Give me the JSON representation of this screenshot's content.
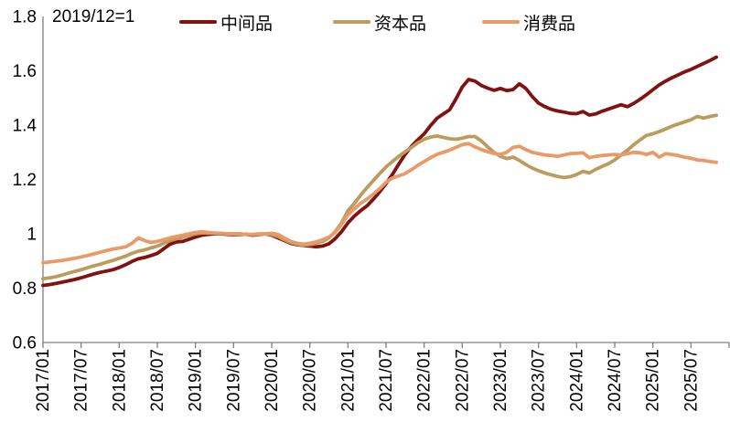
{
  "chart_data": {
    "type": "line",
    "title": "",
    "annotation": "2019/12=1",
    "grid": false,
    "legend_position": "top",
    "ylim": [
      0.6,
      1.8
    ],
    "y_tick_labels": [
      "0.6",
      "0.8",
      "1",
      "1.2",
      "1.4",
      "1.6",
      "1.8"
    ],
    "y_tick_values": [
      0.6,
      0.8,
      1.0,
      1.2,
      1.4,
      1.6,
      1.8
    ],
    "x_tick_labels": [
      "2017/01",
      "2017/07",
      "2018/01",
      "2018/07",
      "2019/01",
      "2019/07",
      "2020/01",
      "2020/07",
      "2021/01",
      "2021/07",
      "2022/01",
      "2022/07",
      "2023/01",
      "2023/07",
      "2024/01",
      "2024/07",
      "2025/01",
      "2025/07"
    ],
    "months_per_tick": 6,
    "x": [
      "2017/01",
      "2017/02",
      "2017/03",
      "2017/04",
      "2017/05",
      "2017/06",
      "2017/07",
      "2017/08",
      "2017/09",
      "2017/10",
      "2017/11",
      "2017/12",
      "2018/01",
      "2018/02",
      "2018/03",
      "2018/04",
      "2018/05",
      "2018/06",
      "2018/07",
      "2018/08",
      "2018/09",
      "2018/10",
      "2018/11",
      "2018/12",
      "2019/01",
      "2019/02",
      "2019/03",
      "2019/04",
      "2019/05",
      "2019/06",
      "2019/07",
      "2019/08",
      "2019/09",
      "2019/10",
      "2019/11",
      "2019/12",
      "2020/01",
      "2020/02",
      "2020/03",
      "2020/04",
      "2020/05",
      "2020/06",
      "2020/07",
      "2020/08",
      "2020/09",
      "2020/10",
      "2020/11",
      "2020/12",
      "2021/01",
      "2021/02",
      "2021/03",
      "2021/04",
      "2021/05",
      "2021/06",
      "2021/07",
      "2021/08",
      "2021/09",
      "2021/10",
      "2021/11",
      "2021/12",
      "2022/01",
      "2022/02",
      "2022/03",
      "2022/04",
      "2022/05",
      "2022/06",
      "2022/07",
      "2022/08",
      "2022/09",
      "2022/10",
      "2022/11",
      "2022/12",
      "2023/01",
      "2023/02",
      "2023/03",
      "2023/04",
      "2023/05",
      "2023/06",
      "2023/07",
      "2023/08",
      "2023/09",
      "2023/10",
      "2023/11",
      "2023/12",
      "2024/01",
      "2024/02",
      "2024/03",
      "2024/04",
      "2024/05",
      "2024/06",
      "2024/07",
      "2024/08",
      "2024/09",
      "2024/10",
      "2024/11",
      "2024/12",
      "2025/01",
      "2025/02",
      "2025/03",
      "2025/04",
      "2025/05",
      "2025/06",
      "2025/07",
      "2025/08",
      "2025/09",
      "2025/10",
      "2025/11"
    ],
    "series": [
      {
        "name": "中间品",
        "color": "#7F1310",
        "values": [
          0.81,
          0.813,
          0.817,
          0.822,
          0.827,
          0.832,
          0.838,
          0.845,
          0.852,
          0.858,
          0.863,
          0.868,
          0.876,
          0.886,
          0.898,
          0.908,
          0.913,
          0.92,
          0.928,
          0.945,
          0.962,
          0.97,
          0.972,
          0.98,
          0.988,
          0.995,
          0.998,
          1.0,
          1.0,
          0.998,
          0.997,
          0.998,
          0.998,
          0.995,
          0.997,
          1.0,
          0.995,
          0.985,
          0.975,
          0.965,
          0.96,
          0.957,
          0.955,
          0.952,
          0.955,
          0.963,
          0.982,
          1.008,
          1.04,
          1.065,
          1.085,
          1.103,
          1.127,
          1.155,
          1.185,
          1.218,
          1.256,
          1.292,
          1.322,
          1.346,
          1.368,
          1.398,
          1.425,
          1.441,
          1.456,
          1.496,
          1.54,
          1.568,
          1.562,
          1.546,
          1.536,
          1.528,
          1.535,
          1.527,
          1.531,
          1.552,
          1.535,
          1.506,
          1.481,
          1.468,
          1.458,
          1.452,
          1.448,
          1.443,
          1.442,
          1.45,
          1.437,
          1.441,
          1.451,
          1.459,
          1.467,
          1.475,
          1.468,
          1.48,
          1.495,
          1.512,
          1.53,
          1.548,
          1.562,
          1.574,
          1.585,
          1.596,
          1.605,
          1.616,
          1.627,
          1.638,
          1.65
        ]
      },
      {
        "name": "资本品",
        "color": "#BC9C5E",
        "values": [
          0.835,
          0.838,
          0.842,
          0.848,
          0.855,
          0.862,
          0.868,
          0.875,
          0.882,
          0.888,
          0.895,
          0.902,
          0.91,
          0.918,
          0.928,
          0.936,
          0.941,
          0.948,
          0.955,
          0.965,
          0.975,
          0.982,
          0.988,
          0.995,
          1.0,
          1.003,
          1.003,
          1.002,
          1.001,
          1.0,
          1.0,
          1.0,
          0.998,
          0.997,
          0.998,
          1.0,
          0.997,
          0.99,
          0.978,
          0.968,
          0.962,
          0.958,
          0.96,
          0.965,
          0.972,
          0.985,
          1.008,
          1.04,
          1.085,
          1.112,
          1.142,
          1.17,
          1.196,
          1.222,
          1.246,
          1.266,
          1.285,
          1.302,
          1.318,
          1.335,
          1.348,
          1.356,
          1.36,
          1.355,
          1.35,
          1.348,
          1.352,
          1.358,
          1.358,
          1.342,
          1.32,
          1.3,
          1.285,
          1.277,
          1.282,
          1.27,
          1.255,
          1.242,
          1.232,
          1.224,
          1.217,
          1.211,
          1.207,
          1.21,
          1.218,
          1.23,
          1.224,
          1.237,
          1.248,
          1.258,
          1.272,
          1.29,
          1.308,
          1.328,
          1.346,
          1.362,
          1.368,
          1.376,
          1.386,
          1.396,
          1.404,
          1.412,
          1.42,
          1.432,
          1.426,
          1.432,
          1.436
        ]
      },
      {
        "name": "消费品",
        "color": "#E89B69",
        "values": [
          0.893,
          0.896,
          0.899,
          0.902,
          0.906,
          0.91,
          0.915,
          0.92,
          0.926,
          0.932,
          0.938,
          0.944,
          0.948,
          0.952,
          0.965,
          0.985,
          0.975,
          0.968,
          0.972,
          0.978,
          0.985,
          0.99,
          0.995,
          1.0,
          1.005,
          1.008,
          1.005,
          1.003,
          1.002,
          1.0,
          1.0,
          1.0,
          0.998,
          0.998,
          1.0,
          1.0,
          1.002,
          0.998,
          0.985,
          0.972,
          0.965,
          0.962,
          0.965,
          0.97,
          0.978,
          0.988,
          1.005,
          1.035,
          1.07,
          1.092,
          1.112,
          1.128,
          1.146,
          1.166,
          1.19,
          1.205,
          1.213,
          1.222,
          1.236,
          1.252,
          1.266,
          1.28,
          1.292,
          1.3,
          1.308,
          1.318,
          1.328,
          1.332,
          1.32,
          1.31,
          1.302,
          1.296,
          1.292,
          1.3,
          1.318,
          1.322,
          1.31,
          1.3,
          1.295,
          1.29,
          1.288,
          1.285,
          1.29,
          1.295,
          1.296,
          1.298,
          1.28,
          1.285,
          1.288,
          1.29,
          1.292,
          1.29,
          1.295,
          1.3,
          1.298,
          1.292,
          1.3,
          1.282,
          1.295,
          1.292,
          1.288,
          1.282,
          1.278,
          1.272,
          1.27,
          1.266,
          1.263
        ]
      }
    ]
  },
  "colors": {
    "axis": "#808080",
    "text": "#000000",
    "background": "#FFFFFF"
  }
}
